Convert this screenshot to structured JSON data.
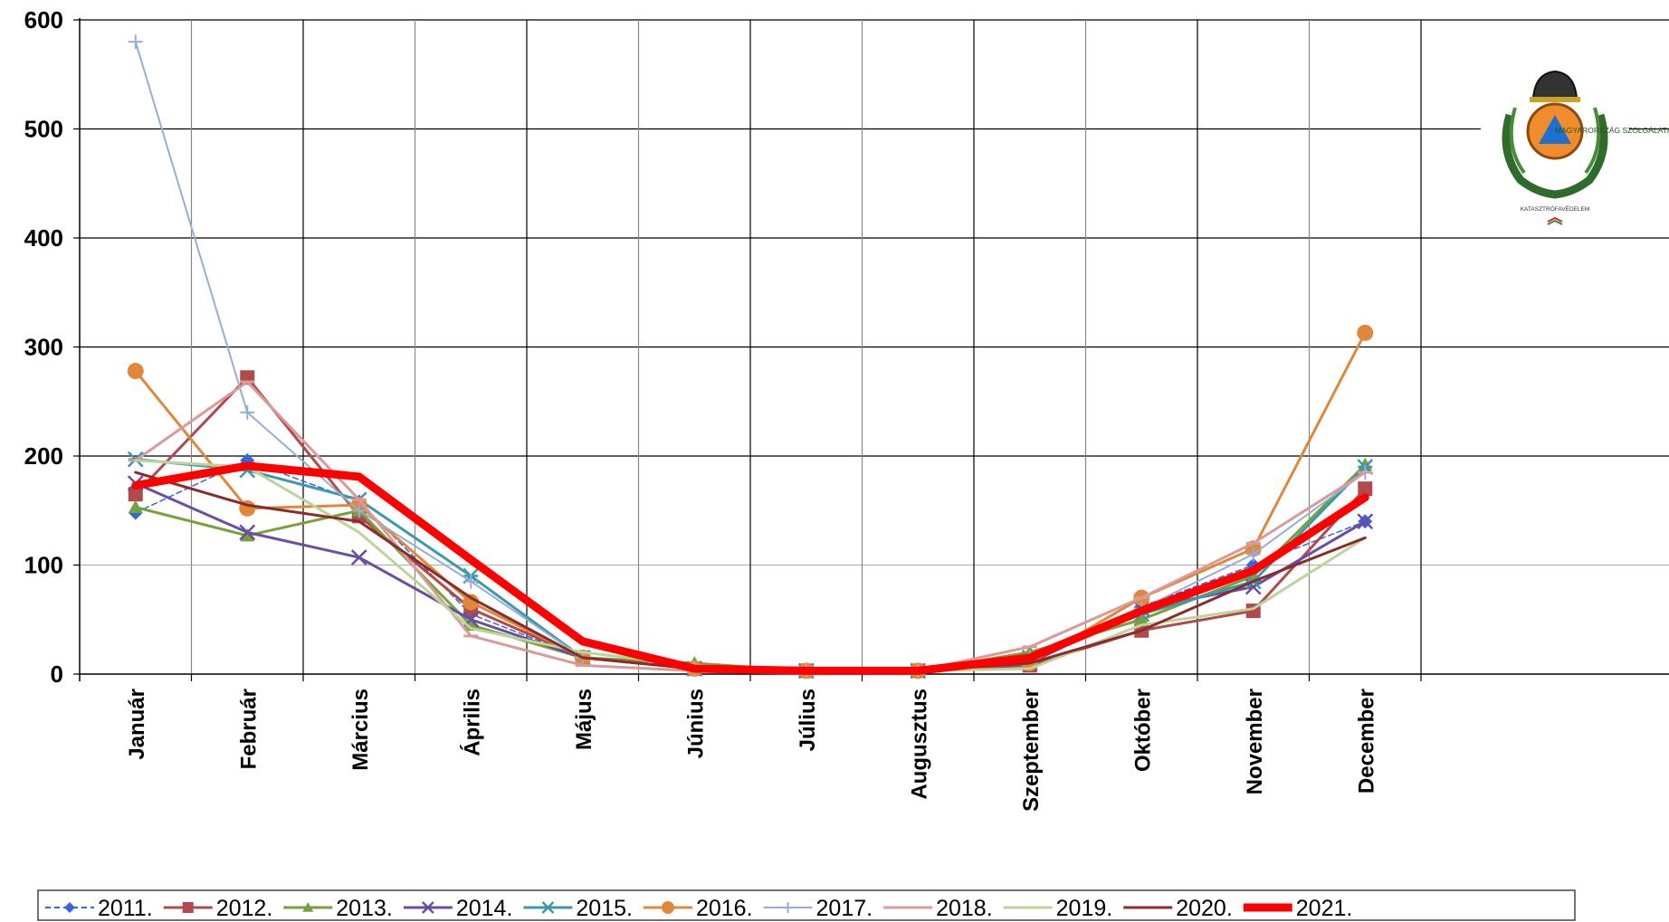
{
  "chart_data": {
    "type": "line",
    "categories": [
      "Január",
      "Február",
      "Március",
      "Április",
      "Május",
      "Június",
      "Július",
      "Augusztus",
      "Szeptember",
      "Október",
      "November",
      "December"
    ],
    "ylim": [
      0,
      600
    ],
    "yticks": [
      "0",
      "100",
      "200",
      "300",
      "400",
      "500",
      "600"
    ],
    "grid": true,
    "legend_position": "bottom",
    "series": [
      {
        "name": "2011.",
        "color": "#3366dd",
        "marker": "diamond",
        "width": 1.5,
        "dashed": true,
        "values": [
          148,
          196,
          158,
          55,
          15,
          5,
          3,
          3,
          10,
          62,
          100,
          140
        ]
      },
      {
        "name": "2012.",
        "color": "#b14a4a",
        "marker": "square",
        "width": 3,
        "values": [
          165,
          272,
          145,
          60,
          15,
          5,
          3,
          3,
          8,
          40,
          58,
          170
        ]
      },
      {
        "name": "2013.",
        "color": "#77a13a",
        "marker": "triangle",
        "width": 3,
        "values": [
          153,
          127,
          150,
          45,
          15,
          10,
          3,
          3,
          20,
          50,
          90,
          192
        ]
      },
      {
        "name": "2014.",
        "color": "#6b4ea0",
        "marker": "x",
        "width": 3,
        "values": [
          175,
          130,
          107,
          50,
          15,
          5,
          3,
          3,
          10,
          60,
          80,
          140
        ]
      },
      {
        "name": "2015.",
        "color": "#3a9aab",
        "marker": "star",
        "width": 3,
        "values": [
          197,
          187,
          160,
          90,
          15,
          5,
          3,
          3,
          15,
          55,
          85,
          190
        ]
      },
      {
        "name": "2016.",
        "color": "#e0883a",
        "marker": "circle",
        "width": 3,
        "values": [
          278,
          152,
          155,
          66,
          15,
          5,
          3,
          3,
          10,
          70,
          115,
          313
        ]
      },
      {
        "name": "2017.",
        "color": "#94aed8",
        "marker": "plus",
        "width": 2,
        "values": [
          580,
          240,
          150,
          85,
          15,
          5,
          3,
          3,
          15,
          60,
          110,
          185
        ]
      },
      {
        "name": "2018.",
        "color": "#d99a99",
        "marker": "dash",
        "width": 3,
        "values": [
          196,
          268,
          160,
          35,
          8,
          3,
          3,
          3,
          25,
          70,
          120,
          185
        ]
      },
      {
        "name": "2019.",
        "color": "#bcd49a",
        "marker": "none",
        "width": 3,
        "values": [
          196,
          190,
          130,
          42,
          20,
          8,
          3,
          3,
          5,
          45,
          60,
          125
        ]
      },
      {
        "name": "2020.",
        "color": "#8b2b2b",
        "marker": "none",
        "width": 3,
        "values": [
          185,
          155,
          140,
          70,
          15,
          5,
          3,
          3,
          10,
          40,
          85,
          125
        ]
      },
      {
        "name": "2021.",
        "color": "#ff0000",
        "marker": "none",
        "width": 9,
        "values": [
          173,
          191,
          181,
          105,
          30,
          5,
          3,
          3,
          15,
          58,
          95,
          162
        ]
      }
    ]
  },
  "logo": {
    "ring_text": "MAGYARORSZÁG SZOLGÁLATÁBAN A BIZTONSÁGÉRT",
    "bottom_text": "KATASZTRÓFAVÉDELEM"
  }
}
